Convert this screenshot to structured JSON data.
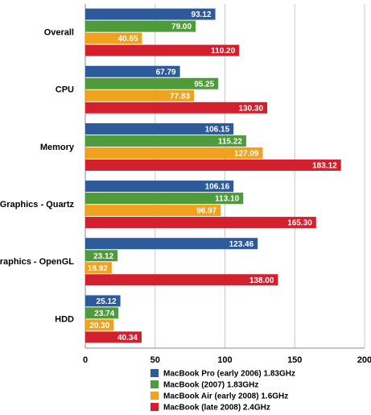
{
  "chart_data": {
    "type": "bar",
    "orientation": "horizontal",
    "categories": [
      "Overall",
      "CPU",
      "Memory",
      "Graphics - Quartz",
      "Graphics - OpenGL",
      "HDD"
    ],
    "series": [
      {
        "name": "MacBook Pro (early 2006) 1.83GHz",
        "color": "#2d5a9b",
        "values": [
          93.12,
          67.79,
          106.15,
          106.16,
          123.46,
          25.12
        ],
        "value_labels": [
          "93.12",
          "67.79",
          "106.15",
          "106.16",
          "123.46",
          "25.12"
        ]
      },
      {
        "name": "MacBook (2007) 1.83GHz",
        "color": "#4f9a3a",
        "values": [
          79,
          95.25,
          115.22,
          113.1,
          23.12,
          23.74
        ],
        "value_labels": [
          "79.00",
          "95.25",
          "115.22",
          "113.10",
          "23.12",
          "23.74"
        ]
      },
      {
        "name": "MacBook Air (early 2008) 1.6GHz",
        "color": "#f0a21f",
        "values": [
          40.65,
          77.83,
          127.09,
          96.97,
          18.92,
          20.3
        ],
        "value_labels": [
          "40.65",
          "77.83",
          "127.09",
          "96.97",
          "18.92",
          "20.30"
        ]
      },
      {
        "name": "MacBook (late 2008) 2.4GHz",
        "color": "#d3202f",
        "values": [
          110.2,
          130.3,
          183.12,
          165.3,
          138,
          40.34
        ],
        "value_labels": [
          "110.20",
          "130.30",
          "183.12",
          "165.30",
          "138.00",
          "40.34"
        ]
      }
    ],
    "xlim": [
      0,
      200
    ],
    "xticks": [
      0,
      50,
      100,
      150,
      200
    ],
    "grid": true
  }
}
